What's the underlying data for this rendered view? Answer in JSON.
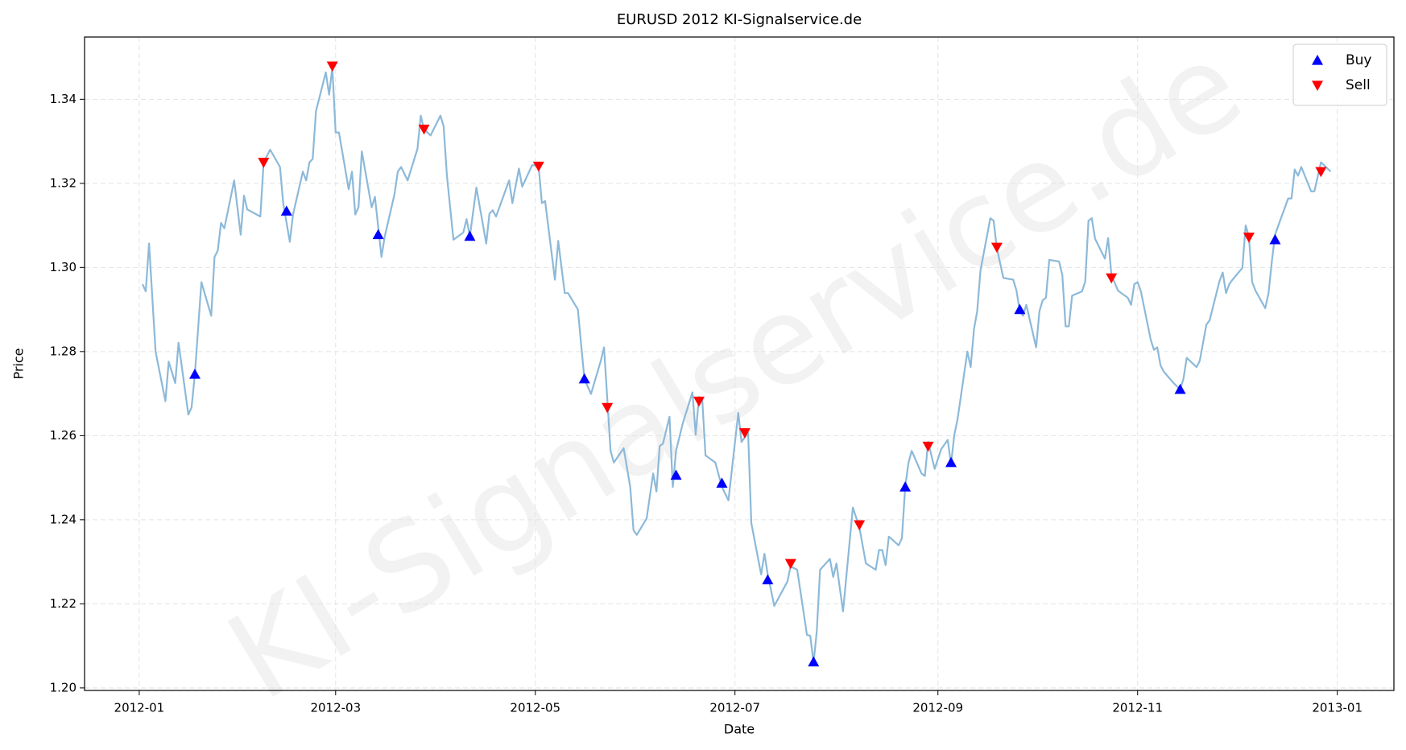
{
  "chart_data": {
    "type": "line",
    "title": "EURUSD 2012 KI-Signalservice.de",
    "xlabel": "Date",
    "ylabel": "Price",
    "watermark": "KI-Signalservice.de",
    "grid": true,
    "legend": "upper right",
    "xlim": [
      -16.7,
      383.3
    ],
    "ylim": [
      1.1994,
      1.3548
    ],
    "xticks": [
      {
        "value": 0,
        "label": "2012-01"
      },
      {
        "value": 60,
        "label": "2012-03"
      },
      {
        "value": 121,
        "label": "2012-05"
      },
      {
        "value": 182,
        "label": "2012-07"
      },
      {
        "value": 244,
        "label": "2012-09"
      },
      {
        "value": 305,
        "label": "2012-11"
      },
      {
        "value": 366,
        "label": "2013-01"
      }
    ],
    "yticks": [
      {
        "value": 1.2,
        "label": "1.20"
      },
      1.22,
      1.24,
      1.26,
      1.28,
      {
        "value": 1.3,
        "label": "1.30"
      },
      1.32,
      1.34
    ],
    "series": [
      {
        "color": "#8cb9d9",
        "x": [
          1,
          2,
          3,
          5,
          8,
          9,
          11,
          12,
          15,
          16,
          17,
          19,
          22,
          23,
          24,
          25,
          26,
          29,
          31,
          32,
          33,
          37,
          38,
          40,
          43,
          44,
          46,
          47,
          50,
          51,
          52,
          53,
          54,
          57,
          58,
          59,
          60,
          61,
          64,
          65,
          66,
          67,
          68,
          71,
          72,
          74,
          75,
          78,
          79,
          80,
          82,
          85,
          86,
          87,
          89,
          92,
          93,
          94,
          96,
          99,
          100,
          101,
          103,
          106,
          107,
          108,
          109,
          113,
          114,
          116,
          117,
          120,
          122,
          123,
          124,
          127,
          128,
          130,
          131,
          134,
          136,
          138,
          141,
          142,
          144,
          145,
          148,
          150,
          151,
          152,
          155,
          157,
          158,
          159,
          160,
          162,
          163,
          164,
          166,
          169,
          170,
          171,
          172,
          173,
          176,
          178,
          180,
          183,
          184,
          186,
          187,
          190,
          191,
          192,
          194,
          198,
          199,
          201,
          204,
          205,
          206,
          207,
          208,
          211,
          212,
          213,
          215,
          218,
          220,
          222,
          225,
          226,
          227,
          228,
          229,
          232,
          233,
          234,
          235,
          236,
          239,
          240,
          241,
          243,
          245,
          247,
          248,
          249,
          250,
          253,
          254,
          255,
          256,
          257,
          260,
          261,
          262,
          264,
          267,
          268,
          269,
          270,
          271,
          274,
          275,
          276,
          277,
          278,
          281,
          282,
          283,
          284,
          285,
          288,
          289,
          290,
          291,
          292,
          295,
          296,
          297,
          299,
          302,
          303,
          304,
          305,
          306,
          309,
          310,
          311,
          312,
          313,
          316,
          318,
          319,
          320,
          323,
          324,
          326,
          327,
          330,
          331,
          332,
          333,
          334,
          337,
          338,
          339,
          340,
          341,
          344,
          345,
          346,
          347,
          348,
          351,
          352,
          353,
          354,
          355,
          358,
          359,
          361,
          362,
          364
        ],
        "values": [
          1.296,
          1.2943,
          1.3057,
          1.28,
          1.2682,
          1.2776,
          1.2725,
          1.2821,
          1.265,
          1.2667,
          1.2746,
          1.2965,
          1.2885,
          1.3025,
          1.304,
          1.3106,
          1.3093,
          1.3207,
          1.3078,
          1.3171,
          1.3138,
          1.3121,
          1.325,
          1.328,
          1.3239,
          1.3153,
          1.3061,
          1.3126,
          1.3228,
          1.3207,
          1.325,
          1.3258,
          1.3372,
          1.3464,
          1.3411,
          1.3475,
          1.3321,
          1.3321,
          1.3186,
          1.3228,
          1.3126,
          1.3143,
          1.3276,
          1.3143,
          1.3168,
          1.3025,
          1.3074,
          1.3175,
          1.3228,
          1.3239,
          1.3207,
          1.3282,
          1.3361,
          1.3329,
          1.3314,
          1.3361,
          1.3336,
          1.3218,
          1.3066,
          1.3083,
          1.3115,
          1.3074,
          1.319,
          1.3057,
          1.3128,
          1.3136,
          1.3121,
          1.3207,
          1.3153,
          1.3235,
          1.3192,
          1.3243,
          1.3243,
          1.3153,
          1.3158,
          1.2971,
          1.3063,
          1.2939,
          1.2939,
          1.29,
          1.2735,
          1.2699,
          1.2778,
          1.281,
          1.2564,
          1.2536,
          1.257,
          1.2478,
          1.2375,
          1.2364,
          1.2403,
          1.251,
          1.2467,
          1.2575,
          1.2581,
          1.2645,
          1.2478,
          1.2564,
          1.2628,
          1.2703,
          1.2602,
          1.2692,
          1.2685,
          1.2553,
          1.2536,
          1.2478,
          1.2446,
          1.2654,
          1.2585,
          1.2607,
          1.2392,
          1.227,
          1.2319,
          1.227,
          1.2195,
          1.2253,
          1.2289,
          1.2281,
          1.2126,
          1.2124,
          1.206,
          1.2135,
          1.2281,
          1.2307,
          1.2264,
          1.2296,
          1.2182,
          1.2429,
          1.2382,
          1.2296,
          1.2281,
          1.2328,
          1.2328,
          1.2292,
          1.236,
          1.2339,
          1.2356,
          1.2478,
          1.2536,
          1.2564,
          1.251,
          1.2504,
          1.2585,
          1.2521,
          1.2568,
          1.259,
          1.2532,
          1.2602,
          1.2639,
          1.28,
          1.2763,
          1.2853,
          1.2896,
          1.2993,
          1.3117,
          1.3111,
          1.3046,
          1.2975,
          1.2971,
          1.2945,
          1.2896,
          1.2885,
          1.2911,
          1.281,
          1.2896,
          1.2922,
          1.2928,
          1.3018,
          1.3014,
          1.2982,
          1.286,
          1.286,
          1.2933,
          1.2943,
          1.2967,
          1.3111,
          1.3117,
          1.3068,
          1.3021,
          1.307,
          1.2982,
          1.2945,
          1.2928,
          1.2911,
          1.296,
          1.2965,
          1.2943,
          1.2828,
          1.2804,
          1.281,
          1.2767,
          1.2752,
          1.2725,
          1.271,
          1.2735,
          1.2785,
          1.2763,
          1.2778,
          1.2864,
          1.2874,
          1.2967,
          1.2988,
          1.2939,
          1.296,
          1.2971,
          1.2999,
          1.31,
          1.3074,
          1.2965,
          1.2945,
          1.2903,
          1.2939,
          1.3014,
          1.3078,
          1.31,
          1.3164,
          1.3164,
          1.3233,
          1.3218,
          1.3239,
          1.3181,
          1.3181,
          1.325,
          1.3243,
          1.3228
        ]
      },
      {
        "name": "Buy",
        "color": "#0000ff",
        "marker": "triangle-up",
        "x": [
          17,
          45,
          73,
          101,
          136,
          164,
          178,
          192,
          206,
          234,
          248,
          269,
          318,
          347
        ],
        "values": [
          1.2746,
          1.3134,
          1.3078,
          1.3074,
          1.2735,
          1.2506,
          1.2487,
          1.2257,
          1.2062,
          1.2478,
          1.2536,
          1.29,
          1.271,
          1.3066
        ]
      },
      {
        "name": "Sell",
        "color": "#ff0000",
        "marker": "triangle-down",
        "x": [
          38,
          59,
          87,
          122,
          143,
          171,
          185,
          199,
          220,
          241,
          262,
          297,
          339,
          361
        ],
        "values": [
          1.325,
          1.3479,
          1.3329,
          1.3241,
          1.2667,
          1.2682,
          1.2607,
          1.2296,
          1.2388,
          1.2575,
          1.3048,
          1.2975,
          1.3072,
          1.3228
        ]
      }
    ]
  }
}
